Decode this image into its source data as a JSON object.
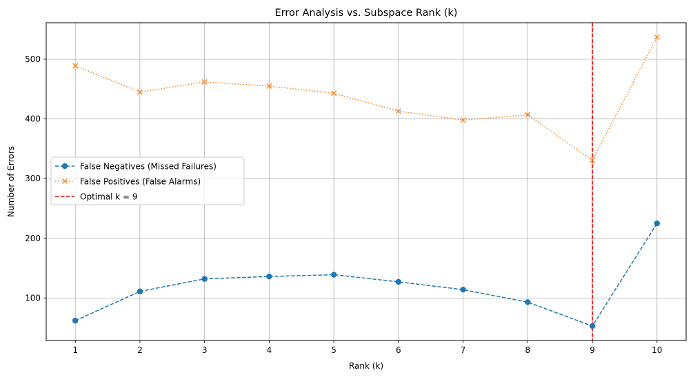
{
  "chart_data": {
    "type": "line",
    "title": "Error Analysis vs. Subspace Rank (k)",
    "xlabel": "Rank (k)",
    "ylabel": "Number of Errors",
    "x": [
      1,
      2,
      3,
      4,
      5,
      6,
      7,
      8,
      9,
      10
    ],
    "xlim": [
      0.55,
      10.45
    ],
    "ylim": [
      28.8,
      561.2
    ],
    "yticks": [
      100,
      200,
      300,
      400,
      500
    ],
    "grid": true,
    "legend_position": "center-left",
    "series": [
      {
        "name": "False Negatives (Missed Failures)",
        "values": [
          62,
          111,
          132,
          136,
          139,
          127,
          114,
          93,
          53,
          225
        ],
        "color": "#1f77b4",
        "line_style": "dashed",
        "marker": "circle"
      },
      {
        "name": "False Positives (False Alarms)",
        "values": [
          489,
          445,
          462,
          455,
          443,
          413,
          398,
          407,
          331,
          537
        ],
        "color": "#ff7f0e",
        "line_style": "dotted",
        "marker": "x"
      }
    ],
    "reference_line": {
      "label": "Optimal k = 9",
      "x": 9,
      "color": "#ff0000",
      "line_style": "dashed"
    }
  }
}
